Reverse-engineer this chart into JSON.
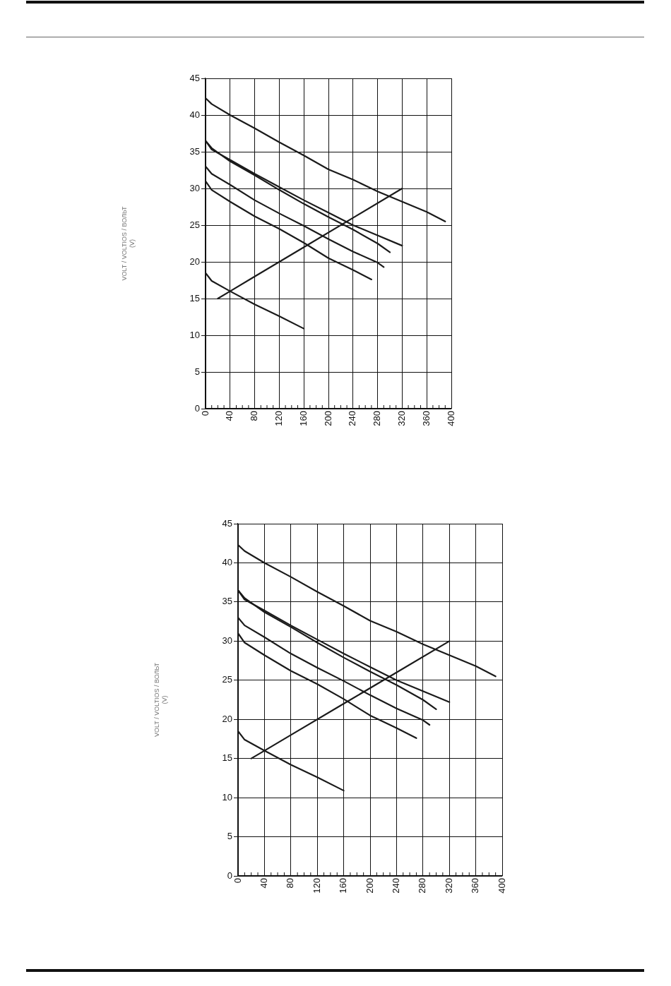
{
  "chart_data": [
    {
      "type": "line",
      "ylabel": "VOLT / VOLTIOS / ВОЛЬТ\n(V)",
      "xlim": [
        0,
        400
      ],
      "ylim": [
        0,
        45
      ],
      "xticks": [
        0,
        {
          "value": 10,
          "label": null
        },
        {
          "value": 20,
          "label": null
        },
        {
          "value": 30,
          "label": null
        },
        40,
        {
          "value": 50,
          "label": null
        },
        {
          "value": 60,
          "label": null
        },
        {
          "value": 70,
          "label": null
        },
        80,
        {
          "value": 90,
          "label": null
        },
        {
          "value": 100,
          "label": null
        },
        {
          "value": 110,
          "label": null
        },
        120,
        {
          "value": 130,
          "label": null
        },
        {
          "value": 140,
          "label": null
        },
        {
          "value": 150,
          "label": null
        },
        160,
        {
          "value": 170,
          "label": null
        },
        {
          "value": 180,
          "label": null
        },
        {
          "value": 190,
          "label": null
        },
        200,
        {
          "value": 210,
          "label": null
        },
        {
          "value": 220,
          "label": null
        },
        {
          "value": 230,
          "label": null
        },
        240,
        {
          "value": 250,
          "label": null
        },
        {
          "value": 260,
          "label": null
        },
        {
          "value": 270,
          "label": null
        },
        280,
        {
          "value": 290,
          "label": null
        },
        {
          "value": 300,
          "label": null
        },
        {
          "value": 310,
          "label": null
        },
        320,
        {
          "value": 330,
          "label": null
        },
        {
          "value": 340,
          "label": null
        },
        {
          "value": 350,
          "label": null
        },
        360,
        {
          "value": 370,
          "label": null
        },
        {
          "value": 380,
          "label": null
        },
        {
          "value": 390,
          "label": null
        },
        400
      ],
      "yticks": [
        0,
        5,
        10,
        15,
        20,
        25,
        30,
        35,
        40,
        45
      ],
      "grid": true,
      "legend": false,
      "marker": "none",
      "line_style": "solid",
      "series": [
        {
          "color": "#1a1a1a",
          "x": [
            0,
            10,
            40,
            80,
            120,
            160,
            200,
            240,
            280,
            320,
            360,
            390
          ],
          "values": [
            42.3,
            41.5,
            40,
            38.2,
            36.3,
            34.5,
            32.6,
            31.2,
            29.6,
            28.2,
            26.8,
            25.5
          ]
        },
        {
          "color": "#1a1a1a",
          "x": [
            0,
            10,
            40,
            80,
            120,
            160,
            200,
            240,
            280,
            320
          ],
          "values": [
            36.5,
            35.3,
            33.9,
            32,
            30.2,
            28.4,
            26.7,
            25,
            23.6,
            22.2
          ]
        },
        {
          "color": "#1a1a1a",
          "x": [
            0,
            10,
            40,
            80,
            120,
            160,
            200,
            240,
            280,
            300
          ],
          "values": [
            36.5,
            35.5,
            33.7,
            31.8,
            29.8,
            27.9,
            26.1,
            24.4,
            22.5,
            21.3
          ]
        },
        {
          "color": "#1a1a1a",
          "x": [
            0,
            10,
            40,
            80,
            120,
            160,
            200,
            240,
            280,
            290
          ],
          "values": [
            33,
            32,
            30.5,
            28.4,
            26.6,
            24.9,
            23.1,
            21.4,
            19.9,
            19.3
          ]
        },
        {
          "color": "#1a1a1a",
          "x": [
            0,
            10,
            40,
            80,
            120,
            160,
            200,
            240,
            270
          ],
          "values": [
            31,
            29.8,
            28.2,
            26.2,
            24.5,
            22.6,
            20.5,
            18.9,
            17.6
          ]
        },
        {
          "color": "#1a1a1a",
          "x": [
            0,
            10,
            40,
            80,
            120,
            160
          ],
          "values": [
            18.5,
            17.4,
            16,
            14.2,
            12.6,
            10.9
          ]
        },
        {
          "color": "#1a1a1a",
          "x": [
            20,
            40,
            80,
            160,
            240,
            320
          ],
          "values": [
            15,
            16,
            18,
            22,
            26,
            30
          ]
        }
      ]
    },
    {
      "type": "line",
      "ylabel": "VOLT / VOLTIOS / ВОЛЬТ\n(V)",
      "xlim": [
        0,
        400
      ],
      "ylim": [
        0,
        45
      ],
      "xticks": [
        0,
        {
          "value": 10,
          "label": null
        },
        {
          "value": 20,
          "label": null
        },
        {
          "value": 30,
          "label": null
        },
        40,
        {
          "value": 50,
          "label": null
        },
        {
          "value": 60,
          "label": null
        },
        {
          "value": 70,
          "label": null
        },
        80,
        {
          "value": 90,
          "label": null
        },
        {
          "value": 100,
          "label": null
        },
        {
          "value": 110,
          "label": null
        },
        120,
        {
          "value": 130,
          "label": null
        },
        {
          "value": 140,
          "label": null
        },
        {
          "value": 150,
          "label": null
        },
        160,
        {
          "value": 170,
          "label": null
        },
        {
          "value": 180,
          "label": null
        },
        {
          "value": 190,
          "label": null
        },
        200,
        {
          "value": 210,
          "label": null
        },
        {
          "value": 220,
          "label": null
        },
        {
          "value": 230,
          "label": null
        },
        240,
        {
          "value": 250,
          "label": null
        },
        {
          "value": 260,
          "label": null
        },
        {
          "value": 270,
          "label": null
        },
        280,
        {
          "value": 290,
          "label": null
        },
        {
          "value": 300,
          "label": null
        },
        {
          "value": 310,
          "label": null
        },
        320,
        {
          "value": 330,
          "label": null
        },
        {
          "value": 340,
          "label": null
        },
        {
          "value": 350,
          "label": null
        },
        360,
        {
          "value": 370,
          "label": null
        },
        {
          "value": 380,
          "label": null
        },
        {
          "value": 390,
          "label": null
        },
        400
      ],
      "yticks": [
        0,
        5,
        10,
        15,
        20,
        25,
        30,
        35,
        40,
        45
      ],
      "grid": true,
      "legend": false,
      "marker": "none",
      "line_style": "solid",
      "series": [
        {
          "color": "#1a1a1a",
          "x": [
            0,
            10,
            40,
            80,
            120,
            160,
            200,
            240,
            280,
            320,
            360,
            390
          ],
          "values": [
            42.3,
            41.5,
            40,
            38.2,
            36.3,
            34.5,
            32.6,
            31.2,
            29.6,
            28.2,
            26.8,
            25.5
          ]
        },
        {
          "color": "#1a1a1a",
          "x": [
            0,
            10,
            40,
            80,
            120,
            160,
            200,
            240,
            280,
            320
          ],
          "values": [
            36.5,
            35.3,
            33.9,
            32,
            30.2,
            28.4,
            26.7,
            25,
            23.6,
            22.2
          ]
        },
        {
          "color": "#1a1a1a",
          "x": [
            0,
            10,
            40,
            80,
            120,
            160,
            200,
            240,
            280,
            300
          ],
          "values": [
            36.5,
            35.5,
            33.7,
            31.8,
            29.8,
            27.9,
            26.1,
            24.4,
            22.5,
            21.3
          ]
        },
        {
          "color": "#1a1a1a",
          "x": [
            0,
            10,
            40,
            80,
            120,
            160,
            200,
            240,
            280,
            290
          ],
          "values": [
            33,
            32,
            30.5,
            28.4,
            26.6,
            24.9,
            23.1,
            21.4,
            19.9,
            19.3
          ]
        },
        {
          "color": "#1a1a1a",
          "x": [
            0,
            10,
            40,
            80,
            120,
            160,
            200,
            240,
            270
          ],
          "values": [
            31,
            29.8,
            28.2,
            26.2,
            24.5,
            22.6,
            20.5,
            18.9,
            17.6
          ]
        },
        {
          "color": "#1a1a1a",
          "x": [
            0,
            10,
            40,
            80,
            120,
            160
          ],
          "values": [
            18.5,
            17.4,
            16,
            14.2,
            12.6,
            10.9
          ]
        },
        {
          "color": "#1a1a1a",
          "x": [
            20,
            40,
            80,
            160,
            240,
            320
          ],
          "values": [
            15,
            16,
            18,
            22,
            26,
            30
          ]
        }
      ]
    }
  ]
}
